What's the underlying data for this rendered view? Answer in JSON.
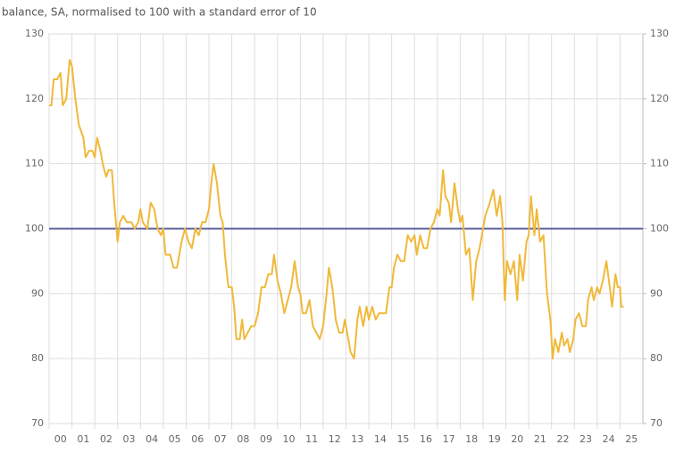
{
  "chart_data": {
    "type": "line",
    "title": "balance, SA, normalised to 100 with a standard error of 10",
    "x": [
      0.0,
      0.1,
      0.2,
      0.35,
      0.5,
      0.6,
      0.75,
      0.9,
      1.0,
      1.15,
      1.3,
      1.5,
      1.6,
      1.75,
      1.9,
      2.0,
      2.1,
      2.25,
      2.35,
      2.5,
      2.6,
      2.75,
      2.85,
      3.0,
      3.1,
      3.25,
      3.4,
      3.6,
      3.75,
      3.9,
      4.0,
      4.1,
      4.3,
      4.45,
      4.6,
      4.75,
      4.9,
      5.0,
      5.1,
      5.3,
      5.45,
      5.6,
      5.8,
      5.95,
      6.1,
      6.25,
      6.4,
      6.55,
      6.7,
      6.85,
      7.0,
      7.1,
      7.2,
      7.35,
      7.5,
      7.6,
      7.7,
      7.85,
      8.0,
      8.1,
      8.2,
      8.35,
      8.45,
      8.55,
      8.7,
      8.85,
      9.0,
      9.15,
      9.3,
      9.45,
      9.6,
      9.75,
      9.85,
      10.0,
      10.15,
      10.3,
      10.45,
      10.6,
      10.75,
      10.9,
      11.0,
      11.1,
      11.25,
      11.4,
      11.55,
      11.7,
      11.85,
      12.0,
      12.15,
      12.25,
      12.4,
      12.55,
      12.7,
      12.85,
      12.95,
      13.05,
      13.2,
      13.35,
      13.5,
      13.6,
      13.75,
      13.9,
      14.0,
      14.15,
      14.3,
      14.45,
      14.6,
      14.75,
      14.9,
      15.0,
      15.1,
      15.25,
      15.4,
      15.55,
      15.7,
      15.85,
      16.0,
      16.1,
      16.25,
      16.4,
      16.55,
      16.7,
      16.85,
      17.0,
      17.1,
      17.25,
      17.35,
      17.5,
      17.6,
      17.75,
      17.9,
      18.0,
      18.1,
      18.25,
      18.4,
      18.55,
      18.7,
      18.85,
      19.0,
      19.1,
      19.3,
      19.45,
      19.6,
      19.75,
      19.85,
      19.95,
      20.05,
      20.2,
      20.35,
      20.5,
      20.6,
      20.75,
      20.9,
      21.0,
      21.1,
      21.25,
      21.35,
      21.5,
      21.65,
      21.8,
      21.95,
      22.05,
      22.15,
      22.3,
      22.45,
      22.55,
      22.7,
      22.8,
      22.95,
      23.05,
      23.2,
      23.35,
      23.5,
      23.6,
      23.75,
      23.85,
      24.0,
      24.1,
      24.25,
      24.4,
      24.55,
      24.65,
      24.8,
      24.9,
      25.0,
      25.05,
      25.15
    ],
    "series": [
      {
        "color": "#f0b93a",
        "values": [
          119,
          119,
          123,
          123,
          124,
          119,
          120,
          126,
          125,
          120,
          116,
          114,
          111,
          112,
          112,
          111,
          114,
          112,
          110,
          108,
          109,
          109,
          104,
          98,
          101,
          102,
          101,
          101,
          100,
          101,
          103,
          101,
          100,
          104,
          103,
          100,
          99,
          100,
          96,
          96,
          94,
          94,
          98,
          100,
          98,
          97,
          100,
          99,
          101,
          101,
          103,
          107,
          110,
          107,
          102,
          101,
          96,
          91,
          91,
          88,
          83,
          83,
          86,
          83,
          84,
          85,
          85,
          87,
          91,
          91,
          93,
          93,
          96,
          92,
          90,
          87,
          89,
          91,
          95,
          91,
          90,
          87,
          87,
          89,
          85,
          84,
          83,
          85,
          90,
          94,
          91,
          86,
          84,
          84,
          86,
          84,
          81,
          80,
          86,
          88,
          85,
          88,
          86,
          88,
          86,
          87,
          87,
          87,
          91,
          91,
          94,
          96,
          95,
          95,
          99,
          98,
          99,
          96,
          99,
          97,
          97,
          100,
          101,
          103,
          102,
          109,
          105,
          104,
          101,
          107,
          103,
          101,
          102,
          96,
          97,
          89,
          95,
          97,
          100,
          102,
          104,
          106,
          102,
          105,
          101,
          89,
          95,
          93,
          95,
          89,
          96,
          92,
          98,
          99,
          105,
          99,
          103,
          98,
          99,
          90,
          86,
          80,
          83,
          81,
          84,
          82,
          83,
          81,
          83,
          86,
          87,
          85,
          85,
          89,
          91,
          89,
          91,
          90,
          92,
          95,
          91,
          88,
          93,
          91,
          91,
          88,
          88
        ]
      }
    ],
    "xlim": [
      0,
      26
    ],
    "xticks": [
      {
        "value": 0.5,
        "label": "00"
      },
      {
        "value": 1.5,
        "label": "01"
      },
      {
        "value": 2.5,
        "label": "02"
      },
      {
        "value": 3.5,
        "label": "03"
      },
      {
        "value": 4.5,
        "label": "04"
      },
      {
        "value": 5.5,
        "label": "05"
      },
      {
        "value": 6.5,
        "label": "06"
      },
      {
        "value": 7.5,
        "label": "07"
      },
      {
        "value": 8.5,
        "label": "08"
      },
      {
        "value": 9.5,
        "label": "09"
      },
      {
        "value": 10.5,
        "label": "10"
      },
      {
        "value": 11.5,
        "label": "11"
      },
      {
        "value": 12.5,
        "label": "12"
      },
      {
        "value": 13.5,
        "label": "13"
      },
      {
        "value": 14.5,
        "label": "14"
      },
      {
        "value": 15.5,
        "label": "15"
      },
      {
        "value": 16.5,
        "label": "16"
      },
      {
        "value": 17.5,
        "label": "17"
      },
      {
        "value": 18.5,
        "label": "18"
      },
      {
        "value": 19.5,
        "label": "19"
      },
      {
        "value": 20.5,
        "label": "20"
      },
      {
        "value": 21.5,
        "label": "21"
      },
      {
        "value": 22.5,
        "label": "22"
      },
      {
        "value": 23.5,
        "label": "23"
      },
      {
        "value": 24.5,
        "label": "24"
      },
      {
        "value": 25.5,
        "label": "25"
      }
    ],
    "ylim": [
      70,
      130
    ],
    "yticks": [
      70,
      80,
      90,
      100,
      110,
      120,
      130
    ],
    "y2lim": [
      70,
      130
    ],
    "y2ticks": [
      70,
      80,
      90,
      100,
      110,
      120,
      130
    ],
    "reference_line": {
      "value": 100,
      "color": "#5a5f9c"
    },
    "grid": true
  }
}
